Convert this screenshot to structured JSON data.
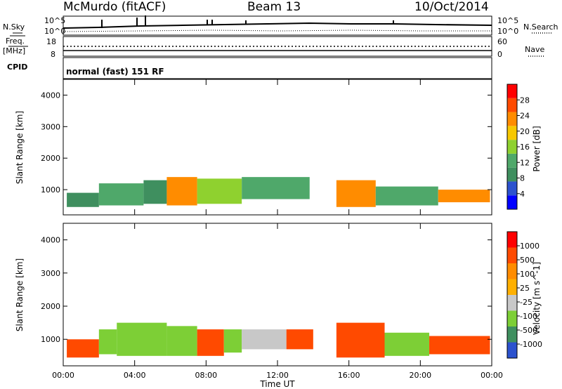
{
  "header": {
    "station": "McMurdo (fitACF)",
    "beam": "Beam 13",
    "date": "10/Oct/2014"
  },
  "status": {
    "nsky_label": "N.Sky",
    "nsearch_label": "N.Search",
    "nsky_ticks": [
      "10^5",
      "10^0"
    ],
    "nsearch_ticks": [
      "10^5",
      "10^0"
    ],
    "freq_label": "Freq.",
    "freq_unit": "[MHz]",
    "freq_ticks": [
      "18",
      "8"
    ],
    "nave_label": "Nave",
    "nave_ticks": [
      "60",
      "0"
    ],
    "cpid_label": "CPID",
    "cpid_text": "normal (fast) 151 RF"
  },
  "colors": {
    "power_scale": [
      "#0000ff",
      "#2c52ce",
      "#3f8f5f",
      "#4fa86a",
      "#8fd12f",
      "#f7c800",
      "#ff8c00",
      "#ff4a00",
      "#ff0000"
    ],
    "velocity_scale": [
      "#ff0000",
      "#ff4a00",
      "#ff8c00",
      "#ffb000",
      "#c8c8c8",
      "#7dcf36",
      "#3f8f5f",
      "#2c52ce"
    ]
  },
  "chart_data": [
    {
      "type": "heatmap",
      "title": "Power",
      "xlabel": "Time UT",
      "ylabel": "Slant Range [km]",
      "x_ticks": [
        "00:00",
        "04:00",
        "08:00",
        "12:00",
        "16:00",
        "20:00",
        "00:00"
      ],
      "y_ticks": [
        "1000",
        "2000",
        "3000",
        "4000"
      ],
      "ylim": [
        200,
        4500
      ],
      "colorbar_label": "Power [dB]",
      "colorbar_ticks": [
        "4",
        "8",
        "12",
        "16",
        "20",
        "24",
        "28"
      ],
      "colorbar_range": [
        0,
        30
      ],
      "bands": [
        {
          "t0": 0.2,
          "t1": 2.0,
          "r0": 450,
          "r1": 900,
          "level": 8
        },
        {
          "t0": 2.0,
          "t1": 4.5,
          "r0": 500,
          "r1": 1200,
          "level": 10
        },
        {
          "t0": 4.5,
          "t1": 5.8,
          "r0": 550,
          "r1": 1300,
          "level": 9
        },
        {
          "t0": 5.8,
          "t1": 7.5,
          "r0": 500,
          "r1": 1400,
          "level": 22
        },
        {
          "t0": 7.5,
          "t1": 10.0,
          "r0": 550,
          "r1": 1350,
          "level": 14
        },
        {
          "t0": 10.0,
          "t1": 13.8,
          "r0": 700,
          "r1": 1400,
          "level": 10
        },
        {
          "t0": 15.3,
          "t1": 17.5,
          "r0": 450,
          "r1": 1300,
          "level": 22
        },
        {
          "t0": 17.5,
          "t1": 21.0,
          "r0": 500,
          "r1": 1100,
          "level": 12
        },
        {
          "t0": 21.0,
          "t1": 23.9,
          "r0": 600,
          "r1": 1000,
          "level": 20
        }
      ]
    },
    {
      "type": "heatmap",
      "title": "Velocity",
      "xlabel": "Time UT",
      "ylabel": "Slant Range [km]",
      "x_ticks": [
        "00:00",
        "04:00",
        "08:00",
        "12:00",
        "16:00",
        "20:00",
        "00:00"
      ],
      "y_ticks": [
        "1000",
        "2000",
        "3000",
        "4000"
      ],
      "ylim": [
        200,
        4500
      ],
      "colorbar_label": "Velocity [m s^-1]",
      "colorbar_ticks": [
        "1000",
        "500",
        "100",
        "25",
        "-25",
        "-100",
        "-500",
        "-1000"
      ],
      "bands": [
        {
          "t0": 0.2,
          "t1": 2.0,
          "r0": 450,
          "r1": 1000,
          "velocity": -150
        },
        {
          "t0": 2.0,
          "t1": 3.0,
          "r0": 550,
          "r1": 1300,
          "velocity": 300
        },
        {
          "t0": 3.0,
          "t1": 5.8,
          "r0": 500,
          "r1": 1500,
          "velocity": 150
        },
        {
          "t0": 5.8,
          "t1": 7.5,
          "r0": 500,
          "r1": 1400,
          "velocity": 120
        },
        {
          "t0": 7.5,
          "t1": 9.0,
          "r0": 500,
          "r1": 1300,
          "velocity": -150
        },
        {
          "t0": 9.0,
          "t1": 10.0,
          "r0": 600,
          "r1": 1300,
          "velocity": 130
        },
        {
          "t0": 10.0,
          "t1": 12.5,
          "r0": 700,
          "r1": 1300,
          "velocity": 60
        },
        {
          "t0": 12.5,
          "t1": 14.0,
          "r0": 700,
          "r1": 1300,
          "velocity": -120
        },
        {
          "t0": 15.3,
          "t1": 18.0,
          "r0": 450,
          "r1": 1500,
          "velocity": -200
        },
        {
          "t0": 18.0,
          "t1": 20.5,
          "r0": 500,
          "r1": 1200,
          "velocity": 120
        },
        {
          "t0": 20.5,
          "t1": 23.9,
          "r0": 550,
          "r1": 1100,
          "velocity": -150
        }
      ]
    }
  ]
}
